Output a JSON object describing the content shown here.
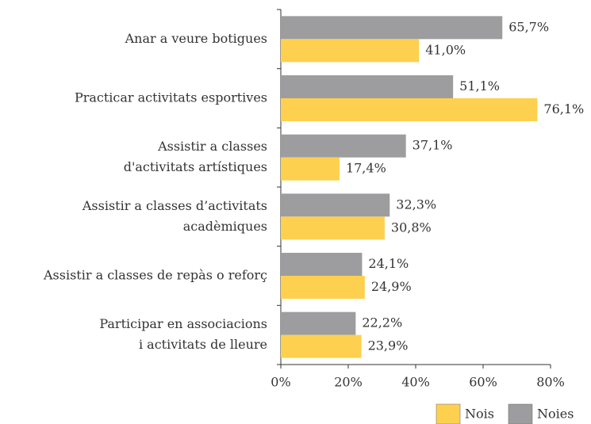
{
  "chart_data": {
    "type": "bar",
    "orientation": "horizontal",
    "categories": [
      [
        "Anar a veure botigues"
      ],
      [
        "Practicar activitats esportives"
      ],
      [
        "Assistir a classes",
        "d'activitats artístiques"
      ],
      [
        "Assistir a classes d’activitats",
        "acadèmiques"
      ],
      [
        "Assistir a classes de repàs o reforç"
      ],
      [
        "Participar en associacions",
        "i activitats de lleure"
      ]
    ],
    "series": [
      {
        "name": "Noies",
        "color": "#9d9d9f",
        "values": [
          65.7,
          51.1,
          37.1,
          32.3,
          24.1,
          22.2
        ],
        "value_labels": [
          "65,7%",
          "51,1%",
          "37,1%",
          "32,3%",
          "24,1%",
          "22,2%"
        ]
      },
      {
        "name": "Nois",
        "color": "#fdd04f",
        "values": [
          41.0,
          76.1,
          17.4,
          30.8,
          24.9,
          23.9
        ],
        "value_labels": [
          "41,0%",
          "76,1%",
          "17,4%",
          "30,8%",
          "24,9%",
          "23,9%"
        ]
      }
    ],
    "xlim": [
      0,
      80
    ],
    "xticks": [
      {
        "value": 0,
        "label": "0%"
      },
      {
        "value": 20,
        "label": "20%"
      },
      {
        "value": 40,
        "label": "40%"
      },
      {
        "value": 60,
        "label": "60%"
      },
      {
        "value": 80,
        "label": "80%"
      }
    ],
    "legend": "bottom-right"
  }
}
